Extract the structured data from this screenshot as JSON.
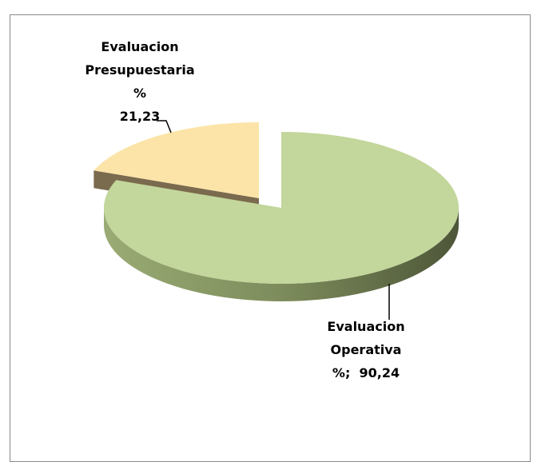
{
  "chart_data": {
    "type": "pie",
    "categories": [
      "Evaluacion Operativa %;",
      "Evaluacion Presupuestaria %"
    ],
    "values": [
      90.24,
      21.23
    ],
    "value_labels": [
      "90,24",
      "21,23"
    ],
    "colors": [
      "#c3d69b",
      "#fce4a8"
    ]
  }
}
